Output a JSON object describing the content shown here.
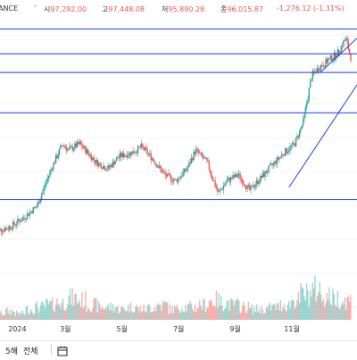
{
  "header": {
    "source": "ANCE",
    "open_label": "시",
    "open_value": "97,292.00",
    "high_label": "고",
    "high_value": "97,448.08",
    "low_label": "저",
    "low_value": "95,890.28",
    "close_label": "종",
    "close_value": "96,015.87",
    "change": "-1,276.12 (-1.31%)",
    "up_color": "#26a69a",
    "down_color": "#ef5350"
  },
  "timescale": {
    "buttons": [
      {
        "label": "5해"
      },
      {
        "label": "전체"
      }
    ],
    "icon": "calendar-icon"
  },
  "chart_data": {
    "type": "candlestick",
    "x_tick_labels": [
      "2024",
      "3월",
      "5월",
      "7월",
      "9월",
      "11월"
    ],
    "price_series": [
      {
        "month": 0,
        "close": 42
      },
      {
        "month": 0.5,
        "close": 43
      },
      {
        "month": 1.0,
        "close": 46
      },
      {
        "month": 1.5,
        "close": 50
      },
      {
        "month": 2.0,
        "close": 62
      },
      {
        "month": 2.4,
        "close": 70
      },
      {
        "month": 2.6,
        "close": 68
      },
      {
        "month": 3.0,
        "close": 70
      },
      {
        "month": 3.3,
        "close": 67
      },
      {
        "month": 3.6,
        "close": 64
      },
      {
        "month": 4.0,
        "close": 62
      },
      {
        "month": 4.4,
        "close": 66
      },
      {
        "month": 4.8,
        "close": 67
      },
      {
        "month": 5.2,
        "close": 69
      },
      {
        "month": 5.6,
        "close": 65
      },
      {
        "month": 6.0,
        "close": 60
      },
      {
        "month": 6.4,
        "close": 58
      },
      {
        "month": 6.8,
        "close": 62
      },
      {
        "month": 7.1,
        "close": 68
      },
      {
        "month": 7.5,
        "close": 64
      },
      {
        "month": 7.9,
        "close": 54
      },
      {
        "month": 8.2,
        "close": 58
      },
      {
        "month": 8.6,
        "close": 60
      },
      {
        "month": 9.0,
        "close": 55
      },
      {
        "month": 9.4,
        "close": 59
      },
      {
        "month": 9.8,
        "close": 63
      },
      {
        "month": 10.2,
        "close": 67
      },
      {
        "month": 10.6,
        "close": 70
      },
      {
        "month": 10.9,
        "close": 77
      },
      {
        "month": 11.2,
        "close": 92
      },
      {
        "month": 11.5,
        "close": 95
      },
      {
        "month": 11.8,
        "close": 97
      },
      {
        "month": 12.1,
        "close": 99
      },
      {
        "month": 12.4,
        "close": 104
      },
      {
        "month": 12.6,
        "close": 97
      }
    ],
    "volume_series": [
      3,
      4,
      3,
      5,
      6,
      7,
      8,
      10,
      9,
      7,
      6,
      6,
      5,
      6,
      5,
      6,
      7,
      5,
      6,
      6,
      7,
      9,
      8,
      7,
      6,
      5,
      5,
      6,
      7,
      9,
      12,
      14,
      11,
      10,
      9
    ],
    "horizontal_levels": [
      107,
      99,
      93,
      80,
      52
    ],
    "trendlines": [
      {
        "from": [
          10.4,
          56
        ],
        "to": [
          12.8,
          89
        ]
      },
      {
        "from": [
          11.5,
          93
        ],
        "to": [
          12.8,
          104
        ]
      }
    ],
    "colors": {
      "up": "#26a69a",
      "down": "#ef5350",
      "levels": "#1e3dd8",
      "grid": "#e6e6e6"
    }
  }
}
